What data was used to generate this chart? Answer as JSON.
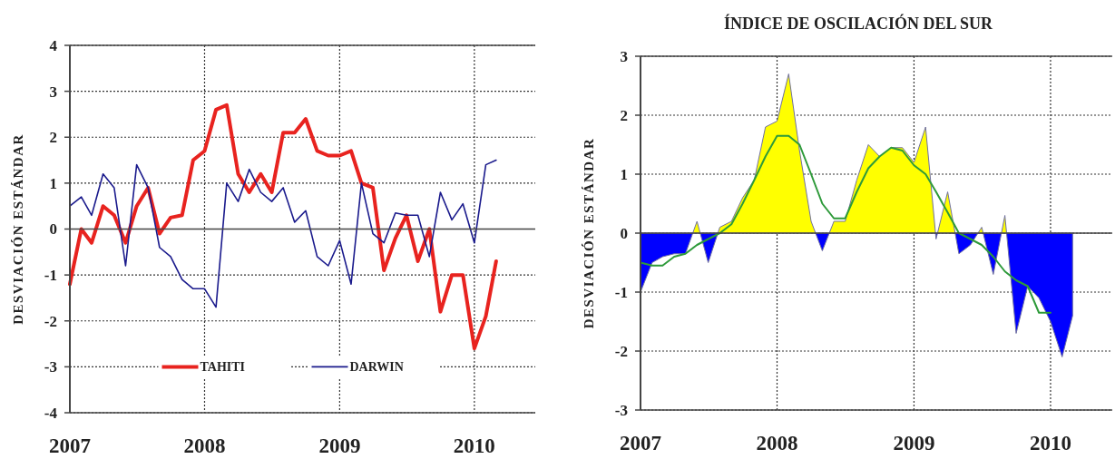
{
  "chart_data": [
    {
      "type": "line",
      "ylabel": "DESVIACIÓN ESTÁNDAR",
      "x": [
        "2007-01",
        "2007-02",
        "2007-03",
        "2007-04",
        "2007-05",
        "2007-06",
        "2007-07",
        "2007-08",
        "2007-09",
        "2007-10",
        "2007-11",
        "2007-12",
        "2008-01",
        "2008-02",
        "2008-03",
        "2008-04",
        "2008-05",
        "2008-06",
        "2008-07",
        "2008-08",
        "2008-09",
        "2008-10",
        "2008-11",
        "2008-12",
        "2009-01",
        "2009-02",
        "2009-03",
        "2009-04",
        "2009-05",
        "2009-06",
        "2009-07",
        "2009-08",
        "2009-09",
        "2009-10",
        "2009-11",
        "2009-12",
        "2010-01",
        "2010-02",
        "2010-03"
      ],
      "series": [
        {
          "name": "TAHITI",
          "color": "#e8231f",
          "values": [
            -1.2,
            0.0,
            -0.3,
            0.5,
            0.3,
            -0.3,
            0.5,
            0.9,
            -0.1,
            0.25,
            0.3,
            1.5,
            1.7,
            2.6,
            2.7,
            1.2,
            0.8,
            1.2,
            0.8,
            2.1,
            2.1,
            2.4,
            1.7,
            1.6,
            1.6,
            1.7,
            1.0,
            0.9,
            -0.9,
            -0.2,
            0.3,
            -0.7,
            0.0,
            -1.8,
            -1.0,
            -1.0,
            -2.6,
            -1.9,
            -0.7
          ]
        },
        {
          "name": "DARWIN",
          "color": "#1a1a8c",
          "values": [
            0.5,
            0.7,
            0.3,
            1.2,
            0.9,
            -0.8,
            1.4,
            0.9,
            -0.4,
            -0.6,
            -1.1,
            -1.3,
            -1.3,
            -1.7,
            1.0,
            0.6,
            1.3,
            0.8,
            0.6,
            0.9,
            0.15,
            0.4,
            -0.6,
            -0.8,
            -0.25,
            -1.2,
            1.0,
            -0.1,
            -0.3,
            0.35,
            0.3,
            0.3,
            -0.6,
            0.8,
            0.2,
            0.55,
            -0.3,
            1.4,
            1.5
          ]
        }
      ],
      "xlim": [
        "2007-01",
        "2010-06-15"
      ],
      "xticks": [
        "2007",
        "2008",
        "2009",
        "2010"
      ],
      "ylim": [
        -4,
        4
      ],
      "yticks": [
        -4,
        -3,
        -2,
        -1,
        0,
        1,
        2,
        3,
        4
      ],
      "grid": true,
      "legend": "bottom",
      "marker": "none",
      "line_style": "solid"
    },
    {
      "type": "area",
      "title": "ÍNDICE DE OSCILACIÓN DEL SUR",
      "ylabel": "DESVIACIÓN ESTÁNDAR",
      "x": [
        "2007-01",
        "2007-02",
        "2007-03",
        "2007-04",
        "2007-05",
        "2007-06",
        "2007-07",
        "2007-08",
        "2007-09",
        "2007-10",
        "2007-11",
        "2007-12",
        "2008-01",
        "2008-02",
        "2008-03",
        "2008-04",
        "2008-05",
        "2008-06",
        "2008-07",
        "2008-08",
        "2008-09",
        "2008-10",
        "2008-11",
        "2008-12",
        "2009-01",
        "2009-02",
        "2009-03",
        "2009-04",
        "2009-05",
        "2009-06",
        "2009-07",
        "2009-08",
        "2009-09",
        "2009-10",
        "2009-11",
        "2009-12",
        "2010-01",
        "2010-02",
        "2010-03"
      ],
      "series": [
        {
          "colors": [
            "#0000ff",
            "#0000ff",
            "#0000ff",
            "#0000ff",
            "#0000ff",
            "#ffff00",
            "#0000ff",
            "#ffff00",
            "#ffff00",
            "#ffff00",
            "#ffff00",
            "#ffff00",
            "#ffff00",
            "#ffff00",
            "#ffff00",
            "#ffff00",
            "#0000ff",
            "#ffff00",
            "#ffff00",
            "#ffff00",
            "#ffff00",
            "#ffff00",
            "#ffff00",
            "#ffff00",
            "#ffff00",
            "#ffff00",
            "#0000ff",
            "#ffff00",
            "#0000ff",
            "#0000ff",
            "#ffff00",
            "#0000ff",
            "#ffff00",
            "#0000ff",
            "#0000ff",
            "#0000ff",
            "#0000ff",
            "#0000ff",
            "#0000ff"
          ],
          "values": [
            -1.0,
            -0.5,
            -0.4,
            -0.35,
            -0.35,
            0.2,
            -0.5,
            0.1,
            0.2,
            0.6,
            0.9,
            1.8,
            1.9,
            2.7,
            1.4,
            0.2,
            -0.3,
            0.2,
            0.2,
            0.9,
            1.5,
            1.3,
            1.45,
            1.45,
            1.2,
            1.8,
            -0.1,
            0.7,
            -0.35,
            -0.2,
            0.1,
            -0.7,
            0.3,
            -1.7,
            -0.9,
            -1.1,
            -1.5,
            -2.1,
            -1.4
          ]
        },
        {
          "type": "line",
          "color": "#2e9a3a",
          "values": [
            -0.5,
            -0.55,
            -0.55,
            -0.4,
            -0.35,
            -0.2,
            -0.1,
            0.0,
            0.15,
            0.5,
            0.9,
            1.3,
            1.65,
            1.65,
            1.5,
            1.0,
            0.5,
            0.25,
            0.25,
            0.7,
            1.1,
            1.3,
            1.45,
            1.4,
            1.15,
            1.0,
            0.7,
            0.35,
            0.0,
            -0.1,
            -0.2,
            -0.4,
            -0.65,
            -0.8,
            -0.9,
            -1.35,
            -1.35,
            null,
            null
          ]
        }
      ],
      "xlim": [
        "2007-01",
        "2010-06-15"
      ],
      "xticks": [
        "2007",
        "2008",
        "2009",
        "2010"
      ],
      "ylim": [
        -3,
        3
      ],
      "yticks": [
        -3,
        -2,
        -1,
        0,
        1,
        2,
        3
      ],
      "grid": true,
      "marker": "none",
      "line_style": "solid"
    }
  ]
}
